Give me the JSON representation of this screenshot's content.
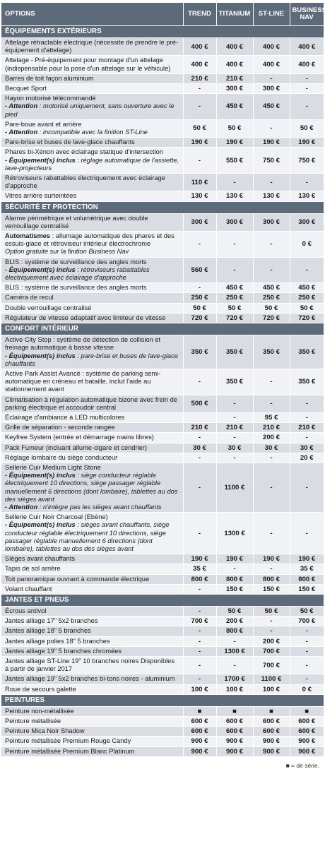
{
  "header": {
    "options": "OPTIONS",
    "trend": "TREND",
    "titanium": "TITANIUM",
    "stline": "ST-LINE",
    "business1": "BUSINESS",
    "business2": "NAV"
  },
  "sections": [
    {
      "title": "ÉQUIPEMENTS EXTÉRIEURS",
      "rows": [
        {
          "lines": [
            {
              "t": "Attelage rétractable électrique (nécessite de prendre le pré-équipement d'attelage)"
            }
          ],
          "values": [
            "400 €",
            "400 €",
            "400 €",
            "400 €"
          ]
        },
        {
          "lines": [
            {
              "t": "Attelage - Pré-équipement pour montage d'un attelage (indispensable pour la pose d'un attelage sur le véhicule)"
            }
          ],
          "values": [
            "400 €",
            "400 €",
            "400 €",
            "400 €"
          ]
        },
        {
          "lines": [
            {
              "t": "Barres de toit façon aluminium"
            }
          ],
          "values": [
            "210 €",
            "210 €",
            "-",
            "-"
          ]
        },
        {
          "lines": [
            {
              "t": "Becquet Sport"
            }
          ],
          "values": [
            "-",
            "300 €",
            "300 €",
            "-"
          ]
        },
        {
          "lines": [
            {
              "t": "Hayon motorisé télécommandé"
            },
            {
              "b": "- Attention",
              "t": " : motorisé uniquement, sans ouverture avec le pied"
            }
          ],
          "values": [
            "-",
            "450 €",
            "450 €",
            "-"
          ]
        },
        {
          "lines": [
            {
              "t": "Pare-boue avant et arrière"
            },
            {
              "b": "- Attention",
              "t": " : incompatible avec la finition ST-Line"
            }
          ],
          "values": [
            "50 €",
            "50 €",
            "-",
            "50 €"
          ]
        },
        {
          "lines": [
            {
              "t": "Pare-brise et buses de lave-glace chauffants"
            }
          ],
          "values": [
            "190 €",
            "190 €",
            "190 €",
            "190 €"
          ]
        },
        {
          "lines": [
            {
              "t": "Phares bi-Xénon avec éclairage statique d'intersection"
            },
            {
              "b": "- Équipement(s) inclus",
              "t": " : réglage automatique de l'assiette, lave-projecteurs"
            }
          ],
          "values": [
            "-",
            "550 €",
            "750 €",
            "750 €"
          ]
        },
        {
          "lines": [
            {
              "t": "Rétroviseurs rabattables électriquement avec éclairage d'approche"
            }
          ],
          "values": [
            "110 €",
            "-",
            "-",
            "-"
          ]
        },
        {
          "lines": [
            {
              "t": "Vitres arrière surteintées"
            }
          ],
          "values": [
            "130 €",
            "130 €",
            "130 €",
            "130 €"
          ]
        }
      ]
    },
    {
      "title": "SÉCURITÉ ET PROTECTION",
      "rows": [
        {
          "lines": [
            {
              "t": "Alarme périmétrique et volumétrique avec double verrouillage centralisé"
            }
          ],
          "values": [
            "300 €",
            "300 €",
            "300 €",
            "300 €"
          ]
        },
        {
          "lines": [
            {
              "p": "Automatismes",
              "t": " : allumage automatique des phares et des essuis-glace et rétroviseur intérieur électrochrome"
            },
            {
              "t": "Option gratuite sur la finition Business Nav",
              "i": true
            }
          ],
          "values": [
            "-",
            "-",
            "-",
            "0 €"
          ]
        },
        {
          "lines": [
            {
              "t": "BLIS : système de surveillance des angles morts"
            },
            {
              "b": "- Équipement(s) inclus",
              "t": " : rétroviseurs rabattables électriquement avec éclairage d'approche"
            }
          ],
          "values": [
            "560 €",
            "-",
            "-",
            "-"
          ]
        },
        {
          "lines": [
            {
              "t": "BLIS : système de surveillance des angles morts"
            }
          ],
          "values": [
            "-",
            "450 €",
            "450 €",
            "450 €"
          ]
        },
        {
          "lines": [
            {
              "t": "Caméra de recul"
            }
          ],
          "values": [
            "250 €",
            "250 €",
            "250 €",
            "250 €"
          ]
        },
        {
          "lines": [
            {
              "t": "Double verrouillage centralisé"
            }
          ],
          "values": [
            "50 €",
            "50 €",
            "50 €",
            "50 €"
          ]
        },
        {
          "lines": [
            {
              "t": "Régulateur de vitesse adaptatif avec limiteur de vitesse"
            }
          ],
          "values": [
            "720 €",
            "720 €",
            "720 €",
            "720 €"
          ]
        }
      ]
    },
    {
      "title": "CONFORT INTÉRIEUR",
      "rows": [
        {
          "lines": [
            {
              "t": "Active City Stop : système de détection de collision et freinage automatique à basse vitesse"
            },
            {
              "b": "- Équipement(s) inclus",
              "t": " : pare-brise et buses de lave-glace chauffants"
            }
          ],
          "values": [
            "350 €",
            "350 €",
            "350 €",
            "350 €"
          ]
        },
        {
          "lines": [
            {
              "t": "Active Park Assist Avancé : système de parking semi-automatique en créneau et bataille, inclut l'aide au stationnement avant"
            }
          ],
          "values": [
            "-",
            "350 €",
            "-",
            "350 €"
          ]
        },
        {
          "lines": [
            {
              "t": "Climatisation à régulation automatique bizone avec frein de parking électrique et accoudoir central"
            }
          ],
          "values": [
            "500 €",
            "-",
            "-",
            "-"
          ]
        },
        {
          "lines": [
            {
              "t": "Éclairage d'ambiance à LED multicolores"
            }
          ],
          "values": [
            "",
            "-",
            "95 €",
            "-"
          ]
        },
        {
          "lines": [
            {
              "t": "Grille de séparation - seconde rangée"
            }
          ],
          "values": [
            "210 €",
            "210 €",
            "210 €",
            "210 €"
          ]
        },
        {
          "lines": [
            {
              "t": "Keyfree System (entrée et démarrage mains libres)"
            }
          ],
          "values": [
            "-",
            "-",
            "200 €",
            "-"
          ]
        },
        {
          "lines": [
            {
              "t": "Pack Fumeur (incluant allume-cigare et cendrier)"
            }
          ],
          "values": [
            "30 €",
            "30 €",
            "30 €",
            "30 €"
          ]
        },
        {
          "lines": [
            {
              "t": "Réglage lombaire du siège conducteur"
            }
          ],
          "values": [
            "-",
            "-",
            "-",
            "20 €"
          ]
        },
        {
          "lines": [
            {
              "t": "Sellerie Cuir Medium Light Stone"
            },
            {
              "b": "- Équipement(s) inclus",
              "t": " : siège conducteur réglable électriquement 10 directions, siège passager réglable manuellement 6 directions (dont lombaire), tablettes au dos des sièges avant"
            },
            {
              "b": "- Attention",
              "t": " : n'intègre pas les sièges avant chauffants"
            }
          ],
          "values": [
            "-",
            "1100 €",
            "-",
            "-"
          ]
        },
        {
          "lines": [
            {
              "t": "Sellerie Cuir Noir Charcoal (Ebène)"
            },
            {
              "b": "- Équipement(s) inclus",
              "t": " : sièges avant chauffants, siège conducteur réglable électriquement 10 directions, siège passager réglable manuellement 6 directions (dont lombaire), tablettes au dos des sièges avant"
            }
          ],
          "values": [
            "-",
            "1300 €",
            "-",
            "-"
          ]
        },
        {
          "lines": [
            {
              "t": "Sièges avant chauffants"
            }
          ],
          "values": [
            "190 €",
            "190 €",
            "190 €",
            "190 €"
          ]
        },
        {
          "lines": [
            {
              "t": "Tapis de sol arrière"
            }
          ],
          "values": [
            "35 €",
            "-",
            "-",
            "35 €"
          ]
        },
        {
          "lines": [
            {
              "t": "Toit panoramique ouvrant à commande électrique"
            }
          ],
          "values": [
            "800 €",
            "800 €",
            "800 €",
            "800 €"
          ]
        },
        {
          "lines": [
            {
              "t": "Volant chauffant"
            }
          ],
          "values": [
            "-",
            "150 €",
            "150 €",
            "150 €"
          ]
        }
      ]
    },
    {
      "title": "JANTES ET PNEUS",
      "rows": [
        {
          "lines": [
            {
              "t": "Écrous antivol"
            }
          ],
          "values": [
            "-",
            "50 €",
            "50 €",
            "50 €"
          ]
        },
        {
          "lines": [
            {
              "t": "Jantes alliage 17\" 5x2 branches"
            }
          ],
          "values": [
            "700 €",
            "200 €",
            "-",
            "700 €"
          ]
        },
        {
          "lines": [
            {
              "t": "Jantes alliage 18\" 5 branches"
            }
          ],
          "values": [
            "-",
            "800 €",
            "-",
            "-"
          ]
        },
        {
          "lines": [
            {
              "t": "Jantes alliage polies 18\" 5 branches"
            }
          ],
          "values": [
            "-",
            "-",
            "200 €",
            "-"
          ]
        },
        {
          "lines": [
            {
              "t": "Jantes alliage 19\" 5 branches chromées"
            }
          ],
          "values": [
            "-",
            "1300 €",
            "700 €",
            "-"
          ]
        },
        {
          "lines": [
            {
              "t": "Jantes alliage ST-Line 19\" 10 branches noires Disponibles à partir de janvier 2017"
            }
          ],
          "values": [
            "-",
            "-",
            "700 €",
            "-"
          ]
        },
        {
          "lines": [
            {
              "t": "Jantes alliage 19\" 5x2 branches bi-tons noires - aluminium"
            }
          ],
          "values": [
            "-",
            "1700 €",
            "1100 €",
            "-"
          ]
        },
        {
          "lines": [
            {
              "t": "Roue de secours galette"
            }
          ],
          "values": [
            "100 €",
            "100 €",
            "100 €",
            "0 €"
          ]
        }
      ]
    },
    {
      "title": "PEINTURES",
      "rows": [
        {
          "lines": [
            {
              "t": "Peinture non-métallisée"
            }
          ],
          "values": [
            "■",
            "■",
            "■",
            "■"
          ]
        },
        {
          "lines": [
            {
              "t": "Peinture métallisée"
            }
          ],
          "values": [
            "600 €",
            "600 €",
            "600 €",
            "600 €"
          ]
        },
        {
          "lines": [
            {
              "t": "Peinture Mica Noir Shadow"
            }
          ],
          "values": [
            "600 €",
            "600 €",
            "600 €",
            "600 €"
          ]
        },
        {
          "lines": [
            {
              "t": "Peinture métallisée Premium Rouge Candy"
            }
          ],
          "values": [
            "900 €",
            "900 €",
            "900 €",
            "900 €"
          ]
        },
        {
          "lines": [
            {
              "t": "Peinture métallisée Premium Blanc Platinum"
            }
          ],
          "values": [
            "900 €",
            "900 €",
            "900 €",
            "900 €"
          ]
        }
      ]
    }
  ],
  "footer": "■ = de série."
}
